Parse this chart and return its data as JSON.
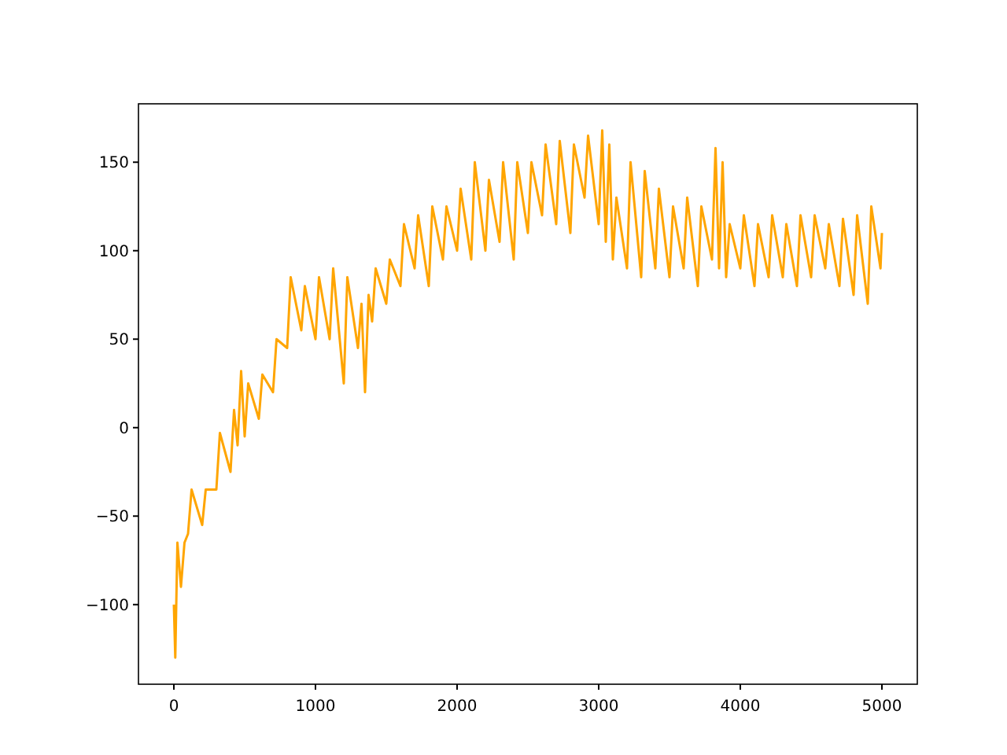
{
  "chart_data": {
    "type": "line",
    "xlim": [
      -250,
      5250
    ],
    "ylim": [
      -145,
      183
    ],
    "xticks": [
      0,
      1000,
      2000,
      3000,
      4000,
      5000
    ],
    "yticks": [
      {
        "value": -100,
        "label": "−100"
      },
      {
        "value": -50,
        "label": "−50"
      },
      0,
      50,
      100,
      150
    ],
    "grid": false,
    "series": [
      {
        "color": "#ffa500",
        "x": [
          0,
          10,
          25,
          50,
          75,
          100,
          125,
          200,
          225,
          300,
          325,
          400,
          425,
          450,
          475,
          500,
          525,
          600,
          625,
          700,
          725,
          800,
          825,
          900,
          925,
          1000,
          1025,
          1100,
          1125,
          1200,
          1225,
          1300,
          1325,
          1350,
          1375,
          1400,
          1425,
          1500,
          1525,
          1600,
          1625,
          1700,
          1725,
          1800,
          1825,
          1900,
          1925,
          2000,
          2025,
          2100,
          2125,
          2200,
          2225,
          2300,
          2325,
          2400,
          2425,
          2500,
          2525,
          2600,
          2625,
          2700,
          2725,
          2800,
          2825,
          2900,
          2925,
          3000,
          3025,
          3050,
          3075,
          3100,
          3125,
          3200,
          3225,
          3300,
          3325,
          3400,
          3425,
          3500,
          3525,
          3600,
          3625,
          3700,
          3725,
          3800,
          3825,
          3850,
          3875,
          3900,
          3925,
          4000,
          4025,
          4100,
          4125,
          4200,
          4225,
          4300,
          4325,
          4400,
          4425,
          4500,
          4525,
          4600,
          4625,
          4700,
          4725,
          4800,
          4825,
          4900,
          4925,
          4990,
          5000
        ],
        "values": [
          -100,
          -130,
          -65,
          -90,
          -65,
          -60,
          -35,
          -55,
          -35,
          -35,
          -3,
          -25,
          10,
          -10,
          32,
          -5,
          25,
          5,
          30,
          20,
          50,
          45,
          85,
          55,
          80,
          50,
          85,
          50,
          90,
          25,
          85,
          45,
          70,
          20,
          75,
          60,
          90,
          70,
          95,
          80,
          115,
          90,
          120,
          80,
          125,
          95,
          125,
          100,
          135,
          95,
          150,
          100,
          140,
          105,
          150,
          95,
          150,
          110,
          150,
          120,
          160,
          115,
          162,
          110,
          160,
          130,
          165,
          115,
          168,
          105,
          160,
          95,
          130,
          90,
          150,
          85,
          145,
          90,
          135,
          85,
          125,
          90,
          130,
          80,
          125,
          95,
          158,
          90,
          150,
          85,
          115,
          90,
          120,
          80,
          115,
          85,
          120,
          85,
          115,
          80,
          120,
          85,
          120,
          90,
          115,
          80,
          118,
          75,
          120,
          70,
          125,
          90,
          110
        ]
      }
    ]
  }
}
